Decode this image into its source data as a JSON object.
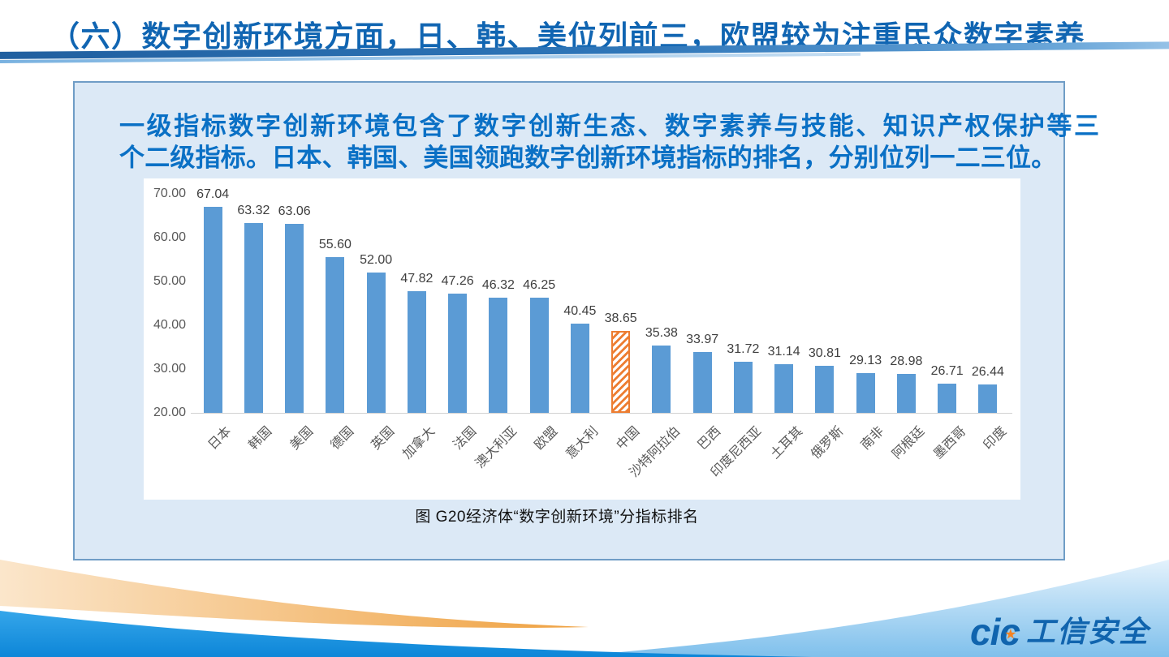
{
  "slide": {
    "title": "（六）数字创新环境方面，日、韩、美位列前三，欧盟较为注重民众数字素养",
    "paragraph_lines": {
      "0": "一级指标数字创新环境包含了数字创新生态、数字素养与技能、知识产权保护等三",
      "1": "个二级指标。日本、韩国、美国领跑数字创新环境指标的排名，分别位列一二三位。"
    },
    "logo": {
      "brand_left": "ci",
      "brand_c": "c",
      "star": "★",
      "text": "工信安全"
    },
    "colors": {
      "title_blue": "#1065b2",
      "paragraph_blue": "#0a70c5",
      "box_bg": "#dce9f6",
      "box_border": "#6f9dc6",
      "bar_blue": "#5B9BD5",
      "highlight_orange": "#ED7D31",
      "axis_gray": "#595959",
      "footer_deep_blue": "#0d86d8",
      "footer_orange": "#efa140"
    }
  },
  "chart_data": {
    "type": "bar",
    "title": "图  G20经济体“数字创新环境”分指标排名",
    "categories": [
      "日本",
      "韩国",
      "美国",
      "德国",
      "英国",
      "加拿大",
      "法国",
      "澳大利亚",
      "欧盟",
      "意大利",
      "中国",
      "沙特阿拉伯",
      "巴西",
      "印度尼西亚",
      "土耳其",
      "俄罗斯",
      "南非",
      "阿根廷",
      "墨西哥",
      "印度"
    ],
    "values": [
      67.04,
      63.32,
      63.06,
      55.6,
      52.0,
      47.82,
      47.26,
      46.32,
      46.25,
      40.45,
      38.65,
      35.38,
      33.97,
      31.72,
      31.14,
      30.81,
      29.13,
      28.98,
      26.71,
      26.44
    ],
    "value_labels": [
      "67.04",
      "63.32",
      "63.06",
      "55.60",
      "52.00",
      "47.82",
      "47.26",
      "46.32",
      "46.25",
      "40.45",
      "38.65",
      "35.38",
      "33.97",
      "31.72",
      "31.14",
      "30.81",
      "29.13",
      "28.98",
      "26.71",
      "26.44"
    ],
    "highlight_category": "中国",
    "highlight_index": 10,
    "xlabel": "",
    "ylabel": "",
    "ylim": [
      20,
      70
    ],
    "y_ticks": [
      "70.00",
      "60.00",
      "50.00",
      "40.00",
      "30.00",
      "20.00"
    ],
    "grid": "baseline-only",
    "legend": "none"
  }
}
